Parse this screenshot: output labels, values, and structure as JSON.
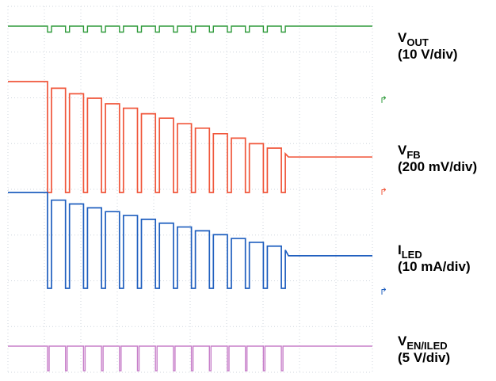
{
  "chart_data": {
    "type": "line",
    "title": "",
    "xlabel": "",
    "ylabel": "",
    "grid": true,
    "grid_divisions": {
      "x": 10,
      "y": 8
    },
    "pulse_count": 14,
    "series": [
      {
        "name": "V_OUT",
        "label_main": "V",
        "label_sub": "OUT",
        "scale": "(10 V/div)",
        "color": "#2e9a3a",
        "baseline_level": 1.0,
        "pulse_dip_depth": 0.5,
        "settled_level": 1.0
      },
      {
        "name": "V_FB",
        "label_main": "V",
        "label_sub": "FB",
        "scale": "(200 mV/div)",
        "color": "#f0563a",
        "start_level": 1.0,
        "pulse_tops": [
          0.94,
          0.89,
          0.85,
          0.8,
          0.76,
          0.71,
          0.67,
          0.62,
          0.58,
          0.53,
          0.49,
          0.44,
          0.4,
          0.35
        ],
        "pulse_bottom_level": 0.0,
        "settled_level": 0.32
      },
      {
        "name": "I_LED",
        "label_main": "I",
        "label_sub": "LED",
        "scale": "(10 mA/div)",
        "color": "#1f5fbf",
        "start_level": 1.0,
        "pulse_tops": [
          0.92,
          0.88,
          0.84,
          0.8,
          0.76,
          0.72,
          0.68,
          0.64,
          0.6,
          0.56,
          0.52,
          0.48,
          0.44,
          0.4
        ],
        "pulse_bottom_level": 0.0,
        "settled_level": 0.34
      },
      {
        "name": "V_EN/ILED",
        "label_main": "V",
        "label_sub": "EN/ILED",
        "scale": "(5 V/div)",
        "color": "#c77ec9",
        "low_level": 0.0,
        "high_level": 1.0
      }
    ],
    "channel_markers": [
      {
        "color": "#2e9a3a",
        "glyph": "↱"
      },
      {
        "color": "#f0563a",
        "glyph": "↱"
      },
      {
        "color": "#1f5fbf",
        "glyph": "↱"
      }
    ]
  }
}
